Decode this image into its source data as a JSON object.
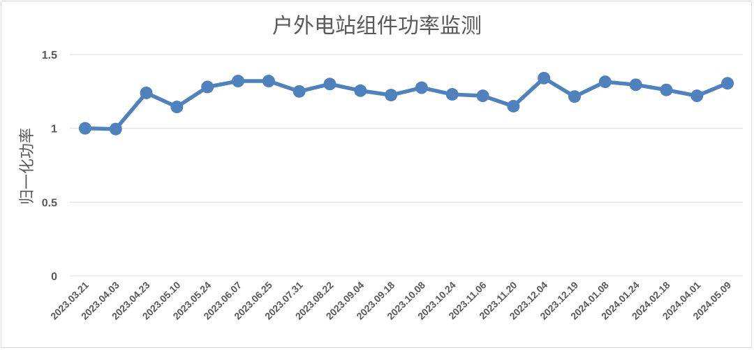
{
  "chart_data": {
    "type": "line",
    "title": "户外电站组件功率监测",
    "xlabel": "",
    "ylabel": "归一化功率",
    "ylim": [
      0,
      1.5
    ],
    "yticks": [
      "0",
      "0.5",
      "1",
      "1.5"
    ],
    "grid": true,
    "categories": [
      "2023.03.21",
      "2023.04.03",
      "2023.04.23",
      "2023.05.10",
      "2023.05.24",
      "2023.06.07",
      "2023.06.25",
      "2023.07.31",
      "2023.08.22",
      "2023.09.04",
      "2023.09.18",
      "2023.10.08",
      "2023.10.24",
      "2023.11.06",
      "2023.11.20",
      "2023.12.04",
      "2023.12.19",
      "2024.01.08",
      "2024.01.24",
      "2024.02.18",
      "2024.04.01",
      "2024.05.09"
    ],
    "series": [
      {
        "values": [
          1.0,
          0.995,
          1.24,
          1.145,
          1.28,
          1.32,
          1.32,
          1.25,
          1.3,
          1.255,
          1.225,
          1.275,
          1.23,
          1.22,
          1.15,
          1.34,
          1.215,
          1.315,
          1.295,
          1.26,
          1.22,
          1.305
        ],
        "color": "#4F81BD"
      }
    ]
  }
}
